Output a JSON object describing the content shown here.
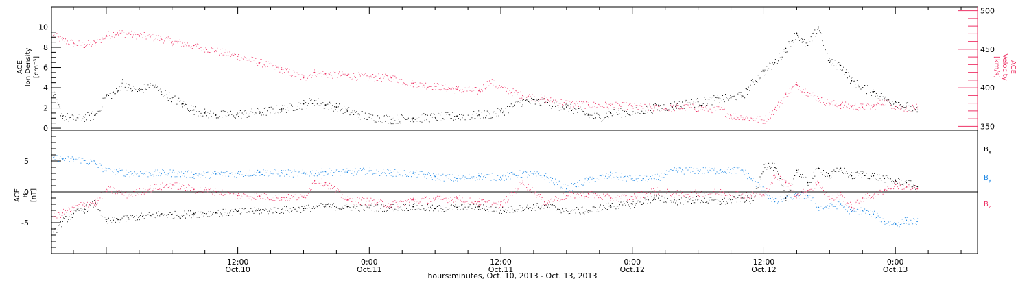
{
  "colors": {
    "black": "#000000",
    "density": "#000000",
    "velocity": "#ee3366",
    "bx": "#000000",
    "by": "#1e88e5",
    "bz": "#ee3366"
  },
  "x_axis": {
    "title": "hours:minutes, Oct. 10, 2013 - Oct. 13, 2013",
    "range_hours": [
      -5.0,
      79.5
    ],
    "major_ticks": [
      {
        "hour": 12,
        "time": "12:00",
        "date": "Oct.10"
      },
      {
        "hour": 24,
        "time": "0:00",
        "date": "Oct.11"
      },
      {
        "hour": 36,
        "time": "12:00",
        "date": "Oct.11"
      },
      {
        "hour": 48,
        "time": "0:00",
        "date": "Oct.12"
      },
      {
        "hour": 60,
        "time": "12:00",
        "date": "Oct.12"
      },
      {
        "hour": 72,
        "time": "0:00",
        "date": "Oct.13"
      }
    ]
  },
  "panels": {
    "top": {
      "left_title": [
        "ACE",
        "Ion Density",
        "[cm⁻³]"
      ],
      "left_ticks": [
        "0",
        "2",
        "4",
        "6",
        "8",
        "10"
      ],
      "right_title": [
        "ACE",
        "Velocity",
        "[km/s]"
      ],
      "right_ticks": [
        "350",
        "400",
        "450",
        "500"
      ]
    },
    "bottom": {
      "left_title": [
        "ACE",
        "B",
        "[nT]"
      ],
      "left_ticks": [
        "-5",
        "0",
        "5"
      ],
      "legend": [
        {
          "base": "B",
          "sub": "x"
        },
        {
          "base": "B",
          "sub": "y"
        },
        {
          "base": "B",
          "sub": "z"
        }
      ]
    }
  },
  "chart_data": [
    {
      "type": "scatter",
      "x_unit": "hours since Oct. 10, 2013 0:00",
      "ylabel": "ACE Ion Density [cm⁻³]",
      "ylim": [
        -0.2,
        12.0
      ],
      "y2label": "ACE Velocity [km/s]",
      "y2lim": [
        345,
        505
      ],
      "series": [
        {
          "axis": "left",
          "x": [
            -4.8,
            -4,
            -3,
            -2,
            -1,
            0,
            1,
            1.5,
            2,
            3,
            4,
            5,
            6,
            7,
            8,
            9,
            10,
            12,
            14,
            16,
            18,
            19,
            20,
            21,
            22,
            23,
            24,
            26,
            28,
            30,
            32,
            34,
            35,
            36,
            38,
            40,
            42,
            44,
            45,
            46,
            48,
            50,
            52,
            54,
            56,
            57,
            58,
            58.5,
            59,
            60,
            61,
            62,
            63,
            63.5,
            64,
            65,
            66,
            67,
            67.5,
            68,
            69,
            70,
            71,
            72,
            73,
            74
          ],
          "y": [
            3.2,
            1.2,
            0.9,
            1.1,
            1.3,
            3.2,
            3.6,
            4.8,
            4.0,
            3.7,
            4.4,
            3.6,
            3.0,
            2.4,
            1.8,
            1.5,
            1.3,
            1.4,
            1.6,
            1.9,
            2.4,
            2.7,
            2.3,
            2.1,
            1.7,
            1.4,
            1.1,
            0.9,
            1.0,
            1.1,
            1.2,
            1.3,
            1.4,
            1.6,
            2.7,
            2.5,
            2.1,
            1.3,
            1.1,
            1.5,
            1.6,
            2.0,
            2.3,
            2.6,
            2.9,
            3.0,
            3.2,
            3.8,
            4.6,
            5.6,
            6.5,
            7.9,
            9.4,
            8.5,
            8.2,
            10.0,
            6.5,
            6.2,
            5.5,
            4.7,
            4.0,
            3.6,
            2.9,
            2.6,
            2.2,
            1.6
          ]
        },
        {
          "axis": "right",
          "x": [
            -4.8,
            -4,
            -3,
            -2,
            -1,
            0,
            1,
            2,
            3,
            4,
            5,
            6,
            8,
            10,
            12,
            14,
            16,
            18,
            19,
            20,
            22,
            24,
            26,
            28,
            30,
            32,
            34,
            35,
            36,
            38,
            40,
            42,
            44,
            46,
            48,
            50,
            51,
            52,
            54,
            56,
            57,
            58,
            59,
            60,
            61,
            62,
            63,
            64,
            65,
            66,
            67,
            68,
            69,
            70,
            71,
            72,
            73,
            74
          ],
          "y": [
            468,
            462,
            458,
            456,
            458,
            468,
            472,
            470,
            468,
            466,
            464,
            460,
            455,
            448,
            441,
            433,
            424,
            413,
            420,
            418,
            416,
            414,
            413,
            406,
            402,
            398,
            396,
            409,
            400,
            390,
            386,
            380,
            378,
            377,
            376,
            374,
            373,
            375,
            374,
            372,
            364,
            362,
            360,
            358,
            372,
            392,
            404,
            394,
            386,
            380,
            378,
            376,
            375,
            376,
            383,
            376,
            374,
            374
          ]
        }
      ]
    },
    {
      "type": "line",
      "x_unit": "hours since Oct. 10, 2013 0:00",
      "ylabel": "ACE B [nT]",
      "ylim": [
        -10.0,
        10.0
      ],
      "series": [
        {
          "name": "Bx",
          "x": [
            -4.8,
            -4,
            -3,
            -2,
            -1,
            0,
            1,
            2,
            3,
            4,
            5,
            6,
            8,
            10,
            12,
            14,
            16,
            18,
            20,
            22,
            24,
            26,
            28,
            30,
            32,
            34,
            36,
            38,
            40,
            42,
            44,
            46,
            48,
            50,
            52,
            54,
            56,
            58,
            59,
            60,
            61,
            62,
            63,
            64,
            65,
            66,
            67,
            68,
            69,
            70,
            71,
            72,
            73,
            74
          ],
          "y": [
            -6.5,
            -4.8,
            -3.5,
            -2.8,
            -1.8,
            -4.8,
            -4.5,
            -4.2,
            -4.0,
            -3.8,
            -3.6,
            -3.7,
            -3.5,
            -3.4,
            -3.2,
            -3.0,
            -2.9,
            -2.7,
            -2.3,
            -2.4,
            -2.6,
            -2.5,
            -2.4,
            -2.7,
            -2.5,
            -2.4,
            -3.0,
            -2.6,
            -2.2,
            -3.0,
            -3.0,
            -2.2,
            -2.0,
            -1.0,
            -1.5,
            -1.2,
            -1.6,
            -1.0,
            -1.4,
            4.4,
            4.0,
            -1.0,
            3.5,
            1.5,
            3.8,
            2.6,
            3.8,
            2.6,
            3.0,
            2.6,
            2.2,
            1.8,
            1.5,
            0.9
          ]
        },
        {
          "name": "By",
          "x": [
            -4.8,
            -4,
            -3,
            -2,
            -1,
            0,
            1,
            2,
            4,
            6,
            8,
            10,
            12,
            14,
            16,
            18,
            20,
            22,
            24,
            26,
            28,
            30,
            32,
            34,
            36,
            38,
            40,
            42,
            44,
            46,
            48,
            50,
            52,
            54,
            56,
            58,
            60,
            61,
            62,
            63,
            64,
            65,
            66,
            67,
            68,
            69,
            70,
            71,
            72,
            73,
            74
          ],
          "y": [
            5.6,
            5.4,
            5.3,
            5.1,
            4.6,
            3.4,
            3.3,
            3.1,
            3.0,
            3.1,
            2.8,
            2.9,
            3.0,
            3.2,
            3.1,
            3.0,
            3.3,
            3.2,
            3.4,
            3.1,
            3.0,
            2.5,
            2.2,
            2.6,
            2.4,
            3.0,
            2.6,
            0.5,
            2.0,
            2.7,
            2.2,
            2.2,
            3.5,
            3.5,
            3.5,
            3.6,
            0.2,
            -1.6,
            -1.0,
            -0.6,
            -0.6,
            -2.5,
            -2.3,
            -2.0,
            -3.2,
            -3.0,
            -3.6,
            -4.8,
            -5.2,
            -4.6,
            -4.8
          ]
        },
        {
          "name": "Bz",
          "x": [
            -4.8,
            -4,
            -3,
            -2,
            -1,
            0,
            1,
            2,
            4,
            6,
            8,
            10,
            12,
            14,
            16,
            18,
            19,
            20,
            22,
            24,
            26,
            28,
            30,
            32,
            34,
            36,
            38,
            40,
            42,
            44,
            46,
            48,
            50,
            52,
            54,
            56,
            58,
            60,
            61,
            62,
            63,
            64,
            65,
            66,
            67,
            68,
            69,
            70,
            71,
            72,
            73,
            74
          ],
          "y": [
            -4.0,
            -3.4,
            -2.6,
            -1.9,
            -1.7,
            0.4,
            0.1,
            -0.5,
            0.6,
            1.2,
            0.4,
            0.1,
            -0.6,
            -0.7,
            -0.9,
            -0.9,
            1.8,
            1.5,
            -1.3,
            -1.5,
            -2.0,
            -1.3,
            -1.2,
            -1.0,
            -1.6,
            -2.1,
            1.6,
            -1.6,
            -0.6,
            -0.3,
            -1.0,
            -0.8,
            0.2,
            -0.3,
            -0.2,
            0.0,
            -0.4,
            -0.6,
            2.7,
            1.5,
            -0.5,
            0.2,
            1.5,
            -1.2,
            -0.5,
            -2.5,
            -1.0,
            -0.5,
            0.3,
            1.2,
            0.8,
            0.5
          ]
        }
      ]
    }
  ]
}
